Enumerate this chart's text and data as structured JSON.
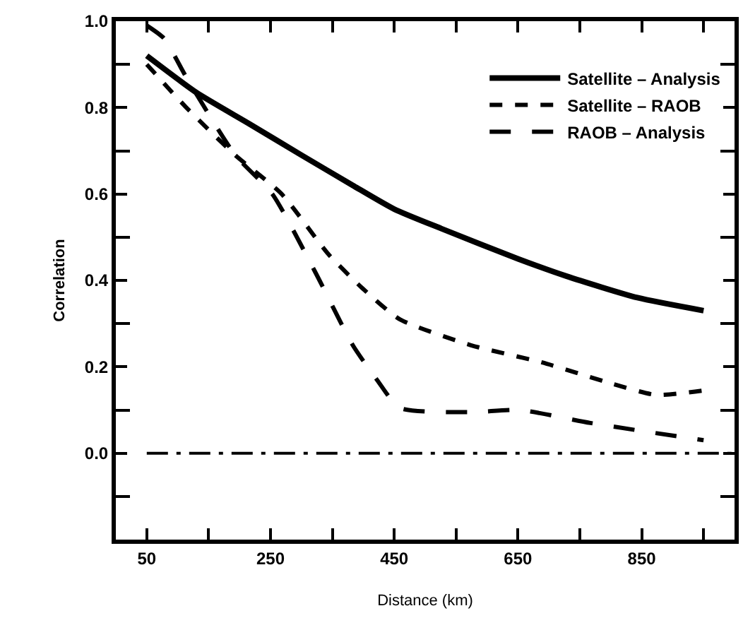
{
  "chart_data": {
    "type": "line",
    "xlabel": "Distance (km)",
    "ylabel": "Correlation",
    "xlim": [
      0,
      1000
    ],
    "xticks": [
      50,
      250,
      450,
      650,
      850
    ],
    "ylim": [
      -0.2,
      1.0
    ],
    "yticks": [
      {
        "value": 0,
        "label": "0.0"
      },
      {
        "value": 0.2,
        "label": "0.2"
      },
      {
        "value": 0.4,
        "label": "0.4"
      },
      {
        "value": 0.6,
        "label": "0.6"
      },
      {
        "value": 0.8,
        "label": "0.8"
      },
      {
        "value": 1,
        "label": "1.0"
      }
    ],
    "grid": false,
    "legend": "top right",
    "marker": "none",
    "ref_lines": [
      {
        "axis": "y",
        "value": 0,
        "color": "#000000",
        "line_style": "dashed"
      }
    ],
    "series": [
      {
        "name": "Satellite – Analysis",
        "color": "#000000",
        "line_style": "solid",
        "x": [
          50,
          130,
          215,
          300,
          383,
          450,
          526,
          650,
          728,
          843,
          950
        ],
        "values": [
          0.92,
          0.835,
          0.763,
          0.69,
          0.62,
          0.565,
          0.52,
          0.45,
          0.41,
          0.36,
          0.33
        ]
      },
      {
        "name": "Satellite – RAOB",
        "color": "#000000",
        "line_style": "dotted",
        "x": [
          50,
          114,
          193,
          268,
          344,
          400,
          459,
          574,
          689,
          804,
          873,
          950
        ],
        "values": [
          0.9,
          0.8,
          0.69,
          0.6,
          0.46,
          0.38,
          0.31,
          0.25,
          0.21,
          0.16,
          0.135,
          0.145
        ]
      },
      {
        "name": "RAOB – Analysis",
        "color": "#000000",
        "line_style": "dashed",
        "x": [
          50,
          78,
          114,
          193,
          253,
          322,
          383,
          422,
          459,
          574,
          652,
          767,
          950
        ],
        "values": [
          0.99,
          0.96,
          0.87,
          0.69,
          0.6,
          0.42,
          0.25,
          0.17,
          0.105,
          0.095,
          0.1,
          0.07,
          0.03
        ]
      }
    ]
  }
}
